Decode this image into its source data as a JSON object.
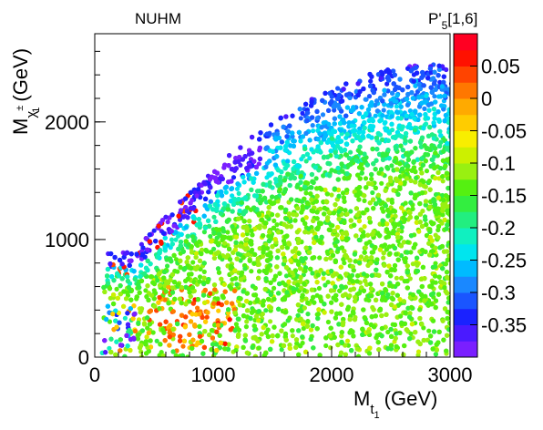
{
  "chart_data": {
    "type": "scatter",
    "title": "NUHM",
    "xlabel": {
      "base": "M",
      "sub_letter": "t",
      "sub_index": "1",
      "unit": "(GeV)"
    },
    "ylabel": {
      "base": "M",
      "sub_letter": "χ",
      "sub_sup": "±",
      "sub_index": "1",
      "unit": "(GeV)"
    },
    "xlim": [
      0,
      3000
    ],
    "ylim": [
      0,
      2750
    ],
    "x_ticks": [
      0,
      1000,
      2000,
      3000
    ],
    "y_ticks": [
      0,
      1000,
      2000
    ],
    "grid": false,
    "colorbar": {
      "title": "P'5[1,6]",
      "title_parts": {
        "base": "P'",
        "sub": "5",
        "rest": "[1,6]"
      },
      "min": -0.4,
      "max": 0.1,
      "ticks": [
        "0.05",
        "0",
        "-0.05",
        "-0.1",
        "-0.15",
        "-0.2",
        "-0.25",
        "-0.3",
        "-0.35"
      ],
      "tick_values": [
        0.05,
        0,
        -0.05,
        -0.1,
        -0.15,
        -0.2,
        -0.25,
        -0.3,
        -0.35
      ],
      "colors": [
        "#7a1fff",
        "#4a1aff",
        "#1a22ff",
        "#1a55ff",
        "#1a88ff",
        "#00bbff",
        "#00e5ee",
        "#10f0c0",
        "#22ee80",
        "#33ee40",
        "#55f011",
        "#99f011",
        "#ccf000",
        "#f8ee00",
        "#ffcc00",
        "#ffaa00",
        "#ff7700",
        "#ff4400",
        "#ff1100",
        "#ff0022"
      ]
    },
    "data_envelope": {
      "upper_edge_x": [
        350,
        500,
        700,
        900,
        1100,
        1300,
        1500,
        1700,
        1900,
        2100,
        2300,
        2500,
        2700,
        2900,
        3000
      ],
      "upper_edge_y": [
        900,
        1100,
        1300,
        1500,
        1700,
        1850,
        2000,
        2120,
        2230,
        2320,
        2400,
        2450,
        2480,
        2490,
        2470
      ],
      "hotspot": {
        "x_range": [
          450,
          1200
        ],
        "y_range": [
          50,
          600
        ],
        "value": 0.06
      }
    }
  }
}
